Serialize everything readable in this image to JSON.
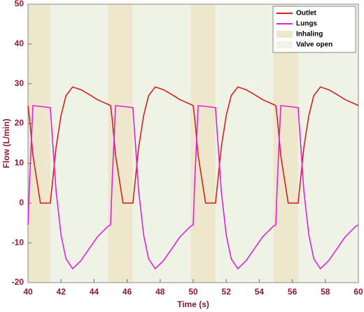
{
  "chart_data": {
    "type": "line",
    "xlabel": "Time (s)",
    "ylabel": "Flow (L/min)",
    "xlim": [
      40,
      60
    ],
    "xticks": [
      40,
      42,
      44,
      46,
      48,
      50,
      52,
      54,
      56,
      58,
      60
    ],
    "ylim": [
      -20,
      50
    ],
    "yticks": [
      -20,
      -10,
      0,
      10,
      20,
      30,
      40,
      50
    ],
    "legend": "upper right",
    "x": [
      40,
      40.1,
      40.3,
      40.75,
      41.35,
      41.5,
      41.7,
      42,
      42.3,
      42.7,
      43.2,
      43.7,
      44.2,
      44.85,
      45,
      45.1,
      45.3,
      45.75,
      46.35,
      46.5,
      46.7,
      47,
      47.3,
      47.7,
      48.2,
      48.7,
      49.2,
      49.85,
      50,
      50.1,
      50.3,
      50.75,
      51.35,
      51.5,
      51.7,
      52,
      52.3,
      52.7,
      53.2,
      53.7,
      54.2,
      54.85,
      55,
      55.1,
      55.3,
      55.75,
      56.35,
      56.5,
      56.7,
      57,
      57.3,
      57.7,
      58.2,
      58.7,
      59.2,
      59.85,
      60
    ],
    "series": [
      {
        "name": "Outlet",
        "color": "#d62020",
        "values": [
          24.5,
          21,
          12,
          0,
          0,
          6,
          14,
          22,
          27,
          29.2,
          28.5,
          27.3,
          26,
          24.8,
          24.5,
          21,
          12,
          0,
          0,
          6,
          14,
          22,
          27,
          29.2,
          28.5,
          27.3,
          26,
          24.8,
          24.5,
          21,
          12,
          0,
          0,
          6,
          14,
          22,
          27,
          29.2,
          28.5,
          27.3,
          26,
          24.8,
          24.5,
          21,
          12,
          0,
          0,
          6,
          14,
          22,
          27,
          29.2,
          28.5,
          27.3,
          26,
          24.8,
          24.5
        ]
      },
      {
        "name": "Lungs",
        "color": "#e020e0",
        "values": [
          -5.5,
          6,
          24.5,
          24.3,
          24,
          15,
          3,
          -8,
          -14,
          -16.5,
          -14.5,
          -11.5,
          -8.5,
          -5.8,
          -5.5,
          6,
          24.5,
          24.3,
          24,
          15,
          3,
          -8,
          -14,
          -16.5,
          -14.5,
          -11.5,
          -8.5,
          -5.8,
          -5.5,
          6,
          24.5,
          24.3,
          24,
          15,
          3,
          -8,
          -14,
          -16.5,
          -14.5,
          -11.5,
          -8.5,
          -5.8,
          -5.5,
          6,
          24.5,
          24.3,
          24,
          15,
          3,
          -8,
          -14,
          -16.5,
          -14.5,
          -11.5,
          -8.5,
          -5.8,
          -5.5
        ]
      }
    ],
    "regions": [
      {
        "name": "Inhaling",
        "color": "#efe7cc",
        "spans": [
          [
            40,
            41.35
          ],
          [
            44.85,
            46.35
          ],
          [
            49.85,
            51.35
          ],
          [
            54.85,
            56.35
          ]
        ]
      },
      {
        "name": "Valve open",
        "color": "#eef3e5",
        "spans": [
          [
            41.35,
            44.85
          ],
          [
            46.35,
            49.85
          ],
          [
            51.35,
            54.85
          ],
          [
            56.35,
            60
          ]
        ]
      }
    ]
  }
}
